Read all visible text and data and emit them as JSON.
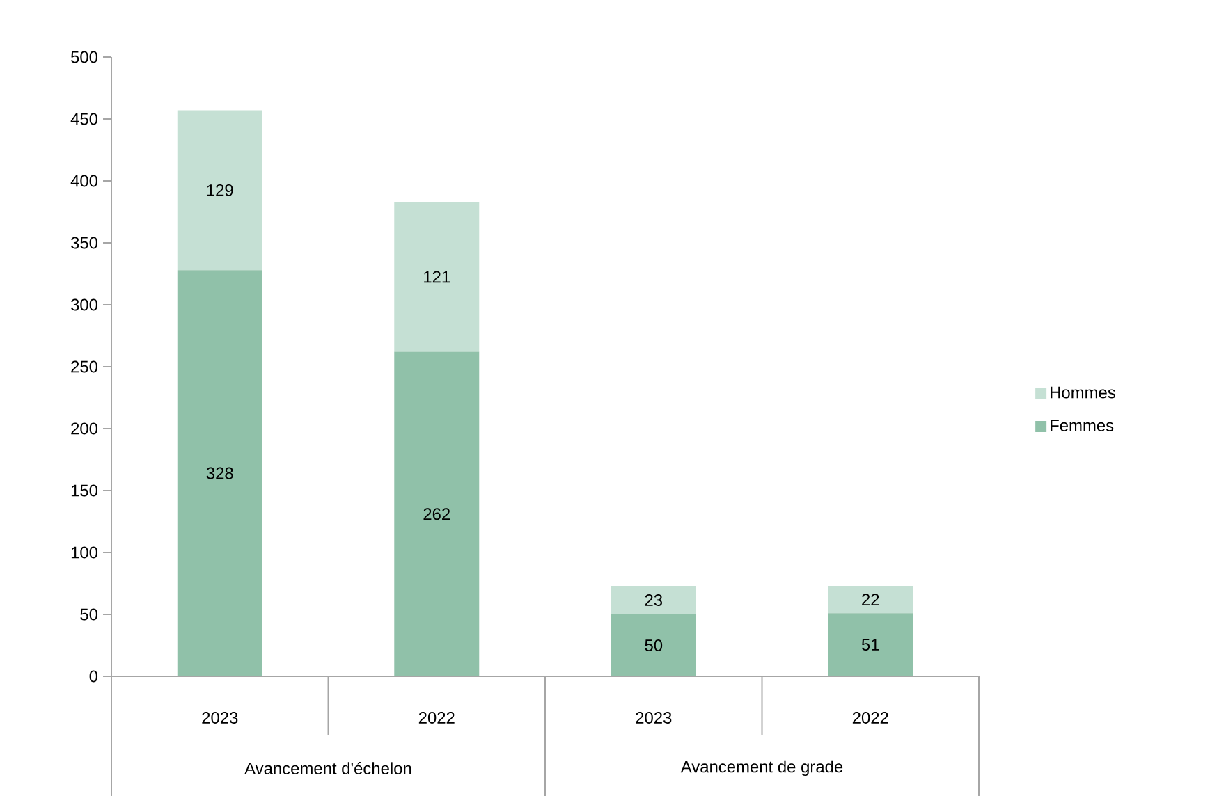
{
  "chart_data": {
    "type": "bar",
    "stacked": true,
    "categories": [
      "2023",
      "2022",
      "2023",
      "2022"
    ],
    "series": [
      {
        "name": "Femmes",
        "color": "#90c1a9",
        "values": [
          328,
          262,
          50,
          51
        ]
      },
      {
        "name": "Hommes",
        "color": "#c5e0d4",
        "values": [
          129,
          121,
          23,
          22
        ]
      }
    ],
    "ylim": [
      0,
      500
    ],
    "yticks": [
      0,
      50,
      100,
      150,
      200,
      250,
      300,
      350,
      400,
      450,
      500
    ],
    "data_labels": true,
    "legend": "right",
    "annotations": [
      "Avancement d'échelon",
      "Avancement de grade"
    ]
  }
}
